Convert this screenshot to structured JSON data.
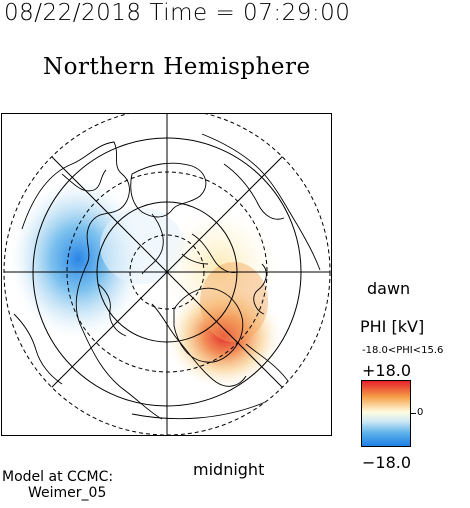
{
  "header": {
    "datetime": "08/22/2018 Time = 07:29:00",
    "hemisphere_title": "Northern Hemisphere"
  },
  "map": {
    "bottom_label": "midnight",
    "right_label": "dawn",
    "potential_pattern": {
      "positive_cell": "dawn / post-midnight side",
      "negative_cell": "dusk / pre-midnight side"
    }
  },
  "colorbar": {
    "title": "PHI [kV]",
    "range_text": "-18.0<PHI<15.6",
    "max_label": "+18.0",
    "zero_label": "0",
    "min_label": "−18.0",
    "colors": {
      "max": "#e8202a",
      "mid": "#fffde0",
      "min": "#1f7fe5"
    }
  },
  "footer": {
    "model_line": "Model at CCMC:",
    "model_name": "Weimer_05"
  }
}
